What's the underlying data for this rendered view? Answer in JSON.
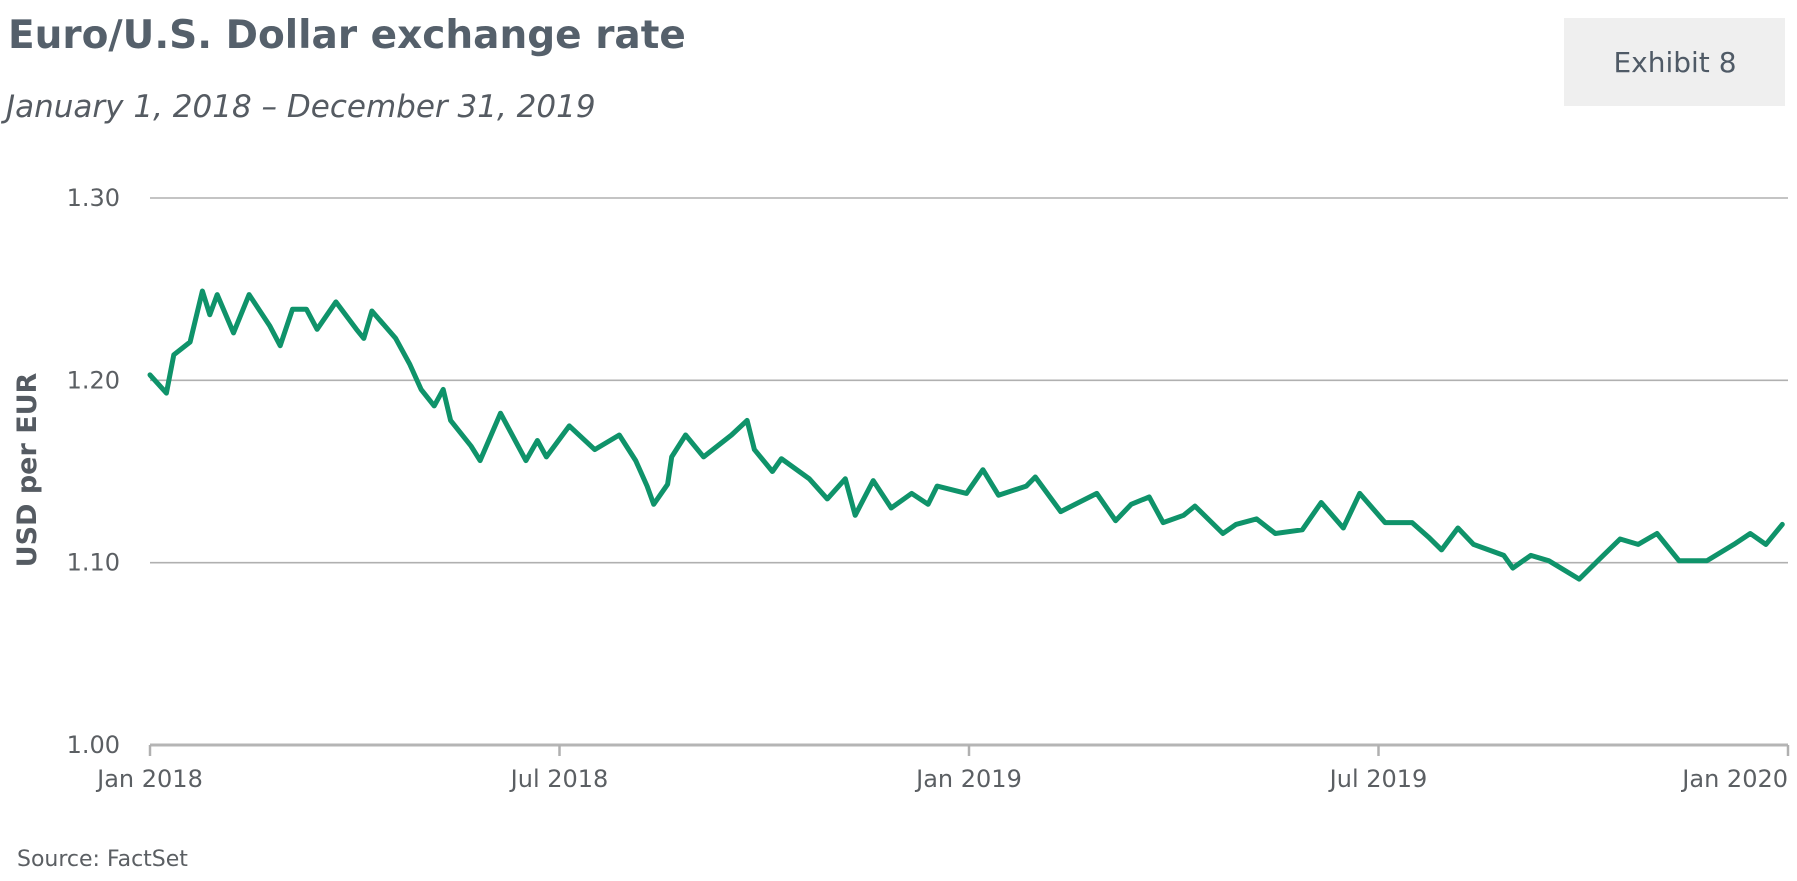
{
  "exhibit": "Exhibit 8",
  "chart_data": {
    "type": "line",
    "title": "Euro/U.S. Dollar exchange rate",
    "subtitle": "January 1, 2018 – December 31, 2019",
    "y_label": "USD per EUR",
    "source": "Source: FactSet",
    "color": "#0f936a",
    "grid": true,
    "xlim": [
      2018,
      2020
    ],
    "xticks": [
      {
        "value": 2018,
        "label": "Jan 2018"
      },
      {
        "value": 2018.5,
        "label": "Jul 2018"
      },
      {
        "value": 2019,
        "label": "Jan 2019"
      },
      {
        "value": 2019.5,
        "label": "Jul 2019"
      },
      {
        "value": 2020,
        "label": "Jan 2020"
      }
    ],
    "ylim": [
      1.0,
      1.3
    ],
    "yticks": [
      {
        "value": 1.0,
        "label": "1.00"
      },
      {
        "value": 1.1,
        "label": "1.10"
      },
      {
        "value": 1.2,
        "label": "1.20"
      },
      {
        "value": 1.3,
        "label": "1.30"
      }
    ],
    "x": [
      2018.0,
      2018.02,
      2018.029,
      2018.049,
      2018.064,
      2018.073,
      2018.082,
      2018.102,
      2018.121,
      2018.146,
      2018.159,
      2018.174,
      2018.191,
      2018.204,
      2018.227,
      2018.252,
      2018.261,
      2018.271,
      2018.3,
      2018.317,
      2018.331,
      2018.347,
      2018.358,
      2018.367,
      2018.392,
      2018.403,
      2018.428,
      2018.459,
      2018.473,
      2018.484,
      2018.512,
      2018.543,
      2018.573,
      2018.593,
      2018.607,
      2018.615,
      2018.632,
      2018.637,
      2018.654,
      2018.676,
      2018.71,
      2018.729,
      2018.738,
      2018.76,
      2018.771,
      2018.805,
      2018.827,
      2018.849,
      2018.861,
      2018.883,
      2018.905,
      2018.93,
      2018.95,
      2018.961,
      2018.997,
      2019.017,
      2019.036,
      2019.07,
      2019.081,
      2019.112,
      2019.156,
      2019.179,
      2019.198,
      2019.22,
      2019.237,
      2019.262,
      2019.276,
      2019.31,
      2019.326,
      2019.351,
      2019.374,
      2019.407,
      2019.43,
      2019.457,
      2019.477,
      2019.508,
      2019.541,
      2019.561,
      2019.577,
      2019.597,
      2019.616,
      2019.653,
      2019.664,
      2019.686,
      2019.708,
      2019.745,
      2019.77,
      2019.795,
      2019.817,
      2019.84,
      2019.867,
      2019.901,
      2019.934,
      2019.954,
      2019.973,
      2019.993
    ],
    "values": [
      1.203,
      1.193,
      1.214,
      1.221,
      1.249,
      1.236,
      1.247,
      1.226,
      1.247,
      1.23,
      1.219,
      1.239,
      1.239,
      1.228,
      1.243,
      1.228,
      1.223,
      1.238,
      1.223,
      1.209,
      1.195,
      1.186,
      1.195,
      1.178,
      1.164,
      1.156,
      1.182,
      1.156,
      1.167,
      1.158,
      1.175,
      1.162,
      1.17,
      1.156,
      1.142,
      1.132,
      1.143,
      1.158,
      1.17,
      1.158,
      1.17,
      1.178,
      1.162,
      1.15,
      1.157,
      1.146,
      1.135,
      1.146,
      1.126,
      1.145,
      1.13,
      1.138,
      1.132,
      1.142,
      1.138,
      1.151,
      1.137,
      1.142,
      1.147,
      1.128,
      1.138,
      1.123,
      1.132,
      1.136,
      1.122,
      1.126,
      1.131,
      1.116,
      1.121,
      1.124,
      1.116,
      1.118,
      1.133,
      1.119,
      1.138,
      1.122,
      1.122,
      1.114,
      1.107,
      1.119,
      1.11,
      1.104,
      1.097,
      1.104,
      1.101,
      1.091,
      1.102,
      1.113,
      1.11,
      1.116,
      1.101,
      1.101,
      1.11,
      1.116,
      1.11,
      1.121
    ]
  }
}
